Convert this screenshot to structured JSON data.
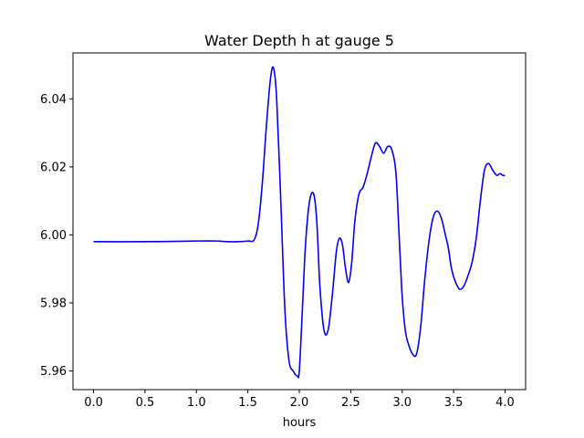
{
  "chart_data": {
    "type": "line",
    "title": "Water Depth h at gauge 5",
    "xlabel": "hours",
    "ylabel": "",
    "xlim": [
      -0.2,
      4.2
    ],
    "ylim": [
      5.9545,
      6.0535
    ],
    "xticks": [
      0.0,
      0.5,
      1.0,
      1.5,
      2.0,
      2.5,
      3.0,
      3.5,
      4.0
    ],
    "xtick_labels": [
      "0.0",
      "0.5",
      "1.0",
      "1.5",
      "2.0",
      "2.5",
      "3.0",
      "3.5",
      "4.0"
    ],
    "yticks": [
      5.96,
      5.98,
      6.0,
      6.02,
      6.04
    ],
    "ytick_labels": [
      "5.96",
      "5.98",
      "6.00",
      "6.02",
      "6.04"
    ],
    "grid": false,
    "color": "#0000ff",
    "series": [
      {
        "name": "",
        "x": [
          0.0,
          0.5,
          1.0,
          1.2,
          1.3,
          1.4,
          1.5,
          1.56,
          1.6,
          1.64,
          1.68,
          1.72,
          1.75,
          1.78,
          1.82,
          1.86,
          1.9,
          1.94,
          1.98,
          2.0,
          2.03,
          2.06,
          2.1,
          2.14,
          2.17,
          2.2,
          2.24,
          2.28,
          2.32,
          2.36,
          2.39,
          2.42,
          2.45,
          2.48,
          2.51,
          2.54,
          2.58,
          2.62,
          2.66,
          2.7,
          2.74,
          2.78,
          2.82,
          2.86,
          2.9,
          2.94,
          2.97,
          3.0,
          3.03,
          3.06,
          3.1,
          3.14,
          3.18,
          3.22,
          3.26,
          3.3,
          3.34,
          3.38,
          3.42,
          3.45,
          3.48,
          3.52,
          3.56,
          3.6,
          3.64,
          3.68,
          3.72,
          3.76,
          3.8,
          3.84,
          3.88,
          3.92,
          3.95,
          3.98,
          4.0
        ],
        "y": [
          5.998,
          5.998,
          5.9982,
          5.9982,
          5.998,
          5.998,
          5.9982,
          5.9985,
          6.003,
          6.015,
          6.032,
          6.046,
          6.049,
          6.04,
          6.01,
          5.978,
          5.963,
          5.96,
          5.9585,
          5.96,
          5.978,
          5.997,
          6.01,
          6.012,
          6.004,
          5.985,
          5.972,
          5.972,
          5.982,
          5.995,
          5.999,
          5.997,
          5.99,
          5.986,
          5.992,
          6.004,
          6.012,
          6.014,
          6.018,
          6.023,
          6.027,
          6.026,
          6.024,
          6.026,
          6.025,
          6.018,
          6.0,
          5.982,
          5.972,
          5.968,
          5.965,
          5.965,
          5.973,
          5.987,
          5.998,
          6.005,
          6.007,
          6.005,
          6.0,
          5.996,
          5.99,
          5.986,
          5.984,
          5.985,
          5.988,
          5.992,
          5.999,
          6.01,
          6.019,
          6.021,
          6.019,
          6.0175,
          6.018,
          6.0175,
          6.0175
        ]
      }
    ]
  }
}
